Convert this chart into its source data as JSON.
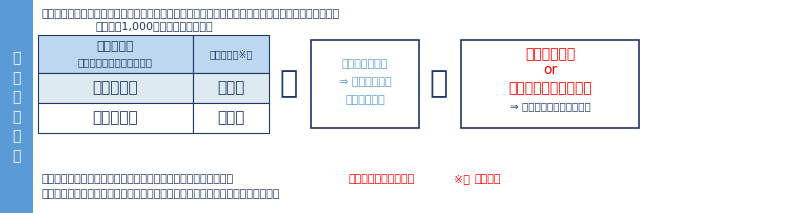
{
  "sidebar_color": "#5b9bd5",
  "sidebar_text": "中\n小\n企\n業\n向\nけ",
  "sidebar_text_color": "#ffffff",
  "bg_color": "#ffffff",
  "top_text1": "・適用対象：青色申告書を提出する中小企業者等（資本金１億円以下の法人、農業協同組合等）又は",
  "top_text2": "従業員数1,000人以下の個人事業主",
  "top_text_color": "#1f3864",
  "table_header1_line1": "全雇用者の",
  "table_header1_line2": "給与等支給額（前年度比）",
  "table_header2": "税額控除率※１",
  "table_header_bg": "#bdd7ee",
  "table_row1_bg": "#deeaf1",
  "table_row2_bg": "#ffffff",
  "table_row1_col1": "＋１．５％",
  "table_row1_col2": "１５％",
  "table_row2_col1": "＋２．５％",
  "table_row2_col2": "３０％",
  "table_text_color": "#1f3864",
  "table_border_color": "#1f3864",
  "middle_box_text1": "前年度比＋５％",
  "middle_box_text2": "⇒ 税額控除率を",
  "middle_box_text3": "１０％上乗せ",
  "middle_box_text_color": "#5b9bd5",
  "middle_box_border": "#1f3864",
  "right_box_line1": "くるみん以上",
  "right_box_line2": "or",
  "right_box_line3": "えるぼし二段階目以上",
  "right_box_line4": "⇒ 税額控除率を５％上乗せ",
  "right_box_text_color": "#ff0000",
  "right_box_small_color": "#1f3864",
  "right_box_border": "#1f3864",
  "plus_color": "#1f3864",
  "bottom_text1_prefix": "中小企業は、賃上げを実施した年度に控除しきれなかった金額の",
  "bottom_text1_highlight": "５年間の繰越しが可能",
  "bottom_text1_suffix1": "※６",
  "bottom_text1_suffix2": "（新設）",
  "bottom_text2": "中小企業は、要件を満たせば、大・中堅企業向けの制度を活用することが可能。",
  "bottom_text_color": "#1f3864",
  "bottom_highlight_color": "#ff0000"
}
